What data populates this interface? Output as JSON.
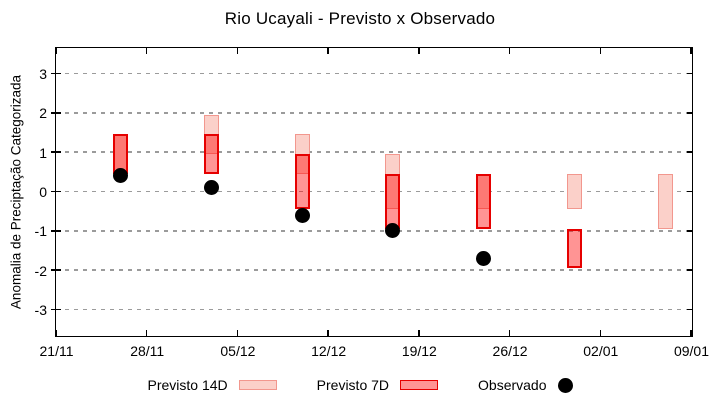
{
  "title": "Rio Ucayali - Previsto x Observado",
  "chart_data": {
    "type": "bar",
    "subtype": "range-bars-with-scatter",
    "title": "Rio Ucayali - Previsto x Observado",
    "xlabel": "",
    "ylabel": "Anomalia de Preciptação Categorizada",
    "ylim": [
      -3.65,
      3.65
    ],
    "y_ticks": [
      3,
      2,
      1,
      0,
      -1,
      -2,
      -3
    ],
    "grid": "horizontal-dashed",
    "legend_position": "bottom-center",
    "x_axis": {
      "range_days": [
        0,
        49
      ],
      "tick_days": [
        0,
        7,
        14,
        21,
        28,
        35,
        42,
        49
      ],
      "tick_labels": [
        "21/11",
        "28/11",
        "05/12",
        "12/12",
        "19/12",
        "26/12",
        "02/01",
        "09/01"
      ]
    },
    "x_days": [
      5,
      12,
      19,
      26,
      33,
      40,
      47
    ],
    "x_dates": [
      "26/11",
      "03/12",
      "10/12",
      "17/12",
      "24/12",
      "31/12",
      "07/01"
    ],
    "series": [
      {
        "name": "Previsto 14D",
        "type": "range-bar",
        "ranges": [
          [
            0.45,
            1.45
          ],
          [
            0.95,
            1.95
          ],
          [
            0.45,
            1.45
          ],
          [
            -0.45,
            0.95
          ],
          [
            -0.45,
            0.45
          ],
          [
            -0.45,
            0.45
          ],
          [
            -0.95,
            0.45
          ]
        ]
      },
      {
        "name": "Previsto 7D",
        "type": "range-bar",
        "ranges": [
          [
            0.45,
            1.45
          ],
          [
            0.45,
            1.45
          ],
          [
            -0.45,
            0.95
          ],
          [
            -0.95,
            0.45
          ],
          [
            -0.95,
            0.45
          ],
          [
            -1.95,
            -0.95
          ],
          null
        ]
      },
      {
        "name": "Observado",
        "type": "scatter",
        "values": [
          0.4,
          0.1,
          -0.6,
          -1.0,
          -1.7,
          null,
          null
        ]
      }
    ],
    "legend": [
      {
        "label": "Previsto 14D",
        "swatch": "light-pink-box"
      },
      {
        "label": "Previsto 7D",
        "swatch": "red-box"
      },
      {
        "label": "Observado",
        "swatch": "black-dot"
      }
    ],
    "colors": {
      "previsto14d_fill": "#fbd0c9",
      "previsto14d_border": "#f2978e",
      "previsto7d_fill": "rgba(255,0,0,0.42)",
      "previsto7d_fill_flat": "#ff9494",
      "previsto7d_border": "#e60000",
      "observado": "#000000",
      "gridline": "#9b9b9b",
      "frame": "#000000"
    }
  }
}
